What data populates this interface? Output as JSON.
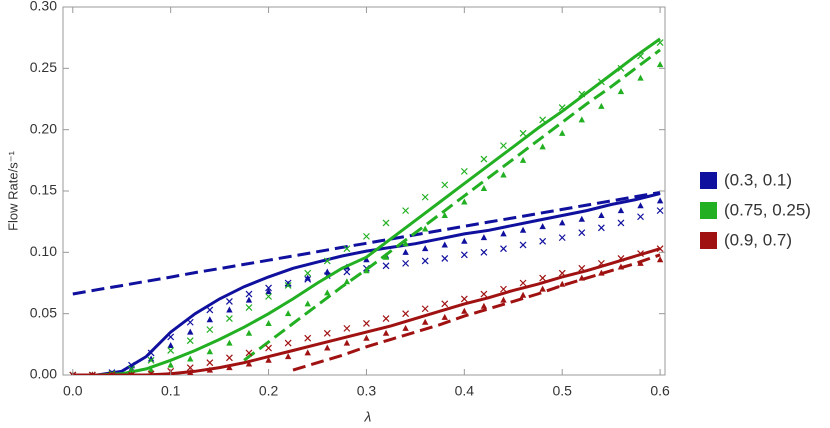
{
  "chart_data": {
    "type": "line",
    "x_label": "λ",
    "y_label": "Flow Rate/s⁻¹",
    "xlim": [
      -0.01,
      0.605
    ],
    "ylim": [
      0,
      0.3
    ],
    "xticks": [
      {
        "value": 0,
        "label": "0.0"
      },
      0.1,
      0.2,
      0.3,
      0.4,
      0.5,
      0.6
    ],
    "yticks": [
      {
        "value": 0,
        "label": "0.00"
      },
      0.05,
      {
        "value": 0.1,
        "label": "0.10"
      },
      0.15,
      {
        "value": 0.2,
        "label": "0.20"
      },
      0.25,
      {
        "value": 0.3,
        "label": "0.30"
      }
    ],
    "legend": "right",
    "line_x": [
      0,
      0.025,
      0.05,
      0.075,
      0.1,
      0.125,
      0.15,
      0.175,
      0.2,
      0.225,
      0.25,
      0.275,
      0.3,
      0.325,
      0.35,
      0.375,
      0.4,
      0.425,
      0.45,
      0.475,
      0.5,
      0.525,
      0.55,
      0.575,
      0.6
    ],
    "marker_x": [
      0,
      0.02,
      0.04,
      0.06,
      0.08,
      0.1,
      0.12,
      0.14,
      0.16,
      0.18,
      0.2,
      0.22,
      0.24,
      0.26,
      0.28,
      0.3,
      0.32,
      0.34,
      0.36,
      0.38,
      0.4,
      0.42,
      0.44,
      0.46,
      0.48,
      0.5,
      0.52,
      0.54,
      0.56,
      0.58,
      0.6
    ],
    "groups": [
      {
        "name": "(0.3, 0.1)",
        "color": "#10109e",
        "solid": [
          0,
          0,
          0.003,
          0.015,
          0.035,
          0.05,
          0.062,
          0.072,
          0.08,
          0.087,
          0.092,
          0.097,
          0.101,
          0.104,
          0.107,
          0.111,
          0.115,
          0.118,
          0.122,
          0.126,
          0.13,
          0.134,
          0.139,
          0.143,
          0.148
        ],
        "dashed": [
          0.066,
          0.0695,
          0.0729,
          0.0764,
          0.0798,
          0.0835,
          0.0867,
          0.0902,
          0.0936,
          0.097,
          0.1005,
          0.104,
          0.1074,
          0.1109,
          0.1143,
          0.1178,
          0.1212,
          0.1247,
          0.1281,
          0.1316,
          0.135,
          0.1385,
          0.1419,
          0.1454,
          0.1488
        ],
        "triangles": [
          0,
          0,
          0.001,
          0.005,
          0.013,
          0.024,
          0.035,
          0.045,
          0.053,
          0.061,
          0.068,
          0.074,
          0.079,
          0.084,
          0.088,
          0.094,
          0.097,
          0.1,
          0.103,
          0.106,
          0.109,
          0.112,
          0.115,
          0.118,
          0.121,
          0.124,
          0.127,
          0.13,
          0.134,
          0.138,
          0.142
        ],
        "crosses": [
          0,
          0,
          0.002,
          0.008,
          0.018,
          0.031,
          0.043,
          0.053,
          0.06,
          0.066,
          0.071,
          0.075,
          0.078,
          0.081,
          0.084,
          0.087,
          0.089,
          0.091,
          0.093,
          0.095,
          0.098,
          0.1,
          0.103,
          0.106,
          0.109,
          0.112,
          0.116,
          0.12,
          0.124,
          0.129,
          0.134
        ]
      },
      {
        "name": "(0.75, 0.25)",
        "color": "#22b022",
        "solid": [
          0,
          0,
          0.001,
          0.005,
          0.012,
          0.02,
          0.029,
          0.039,
          0.05,
          0.062,
          0.075,
          0.087,
          0.096,
          0.111,
          0.126,
          0.141,
          0.156,
          0.171,
          0.186,
          0.201,
          0.215,
          0.23,
          0.245,
          0.26,
          0.274
        ],
        "dashed": [
          null,
          null,
          null,
          null,
          null,
          null,
          null,
          0.012,
          0.027,
          0.042,
          0.057,
          0.072,
          0.086,
          0.101,
          0.116,
          0.131,
          0.146,
          0.161,
          0.176,
          0.191,
          0.206,
          0.221,
          0.235,
          0.25,
          0.265
        ],
        "triangles": [
          0,
          0,
          0,
          0.001,
          0.004,
          0.008,
          0.013,
          0.019,
          0.026,
          0.034,
          0.042,
          0.05,
          0.058,
          0.067,
          0.076,
          0.085,
          0.096,
          0.107,
          0.119,
          0.13,
          0.141,
          0.152,
          0.163,
          0.175,
          0.186,
          0.197,
          0.208,
          0.219,
          0.231,
          0.242,
          0.253
        ],
        "crosses": [
          0,
          0,
          0.001,
          0.005,
          0.012,
          0.02,
          0.028,
          0.037,
          0.046,
          0.055,
          0.064,
          0.073,
          0.083,
          0.093,
          0.103,
          0.113,
          0.124,
          0.134,
          0.145,
          0.155,
          0.166,
          0.176,
          0.187,
          0.197,
          0.208,
          0.218,
          0.229,
          0.239,
          0.25,
          0.26,
          0.271
        ]
      },
      {
        "name": "(0.9, 0.7)",
        "color": "#a01212",
        "solid": [
          0,
          0,
          0,
          0,
          0.001,
          0.003,
          0.006,
          0.01,
          0.015,
          0.02,
          0.025,
          0.03,
          0.035,
          0.04,
          0.046,
          0.052,
          0.058,
          0.063,
          0.069,
          0.074,
          0.08,
          0.085,
          0.091,
          0.097,
          0.103
        ],
        "dashed": [
          null,
          null,
          null,
          null,
          null,
          null,
          null,
          null,
          null,
          0.004,
          0.01,
          0.016,
          0.023,
          0.029,
          0.035,
          0.041,
          0.048,
          0.054,
          0.06,
          0.066,
          0.073,
          0.079,
          0.085,
          0.091,
          0.098
        ],
        "triangles": [
          0,
          0,
          0,
          0,
          0,
          0.001,
          0.002,
          0.004,
          0.006,
          0.009,
          0.012,
          0.015,
          0.018,
          0.022,
          0.026,
          0.03,
          0.034,
          0.038,
          0.043,
          0.047,
          0.052,
          0.056,
          0.061,
          0.065,
          0.07,
          0.074,
          0.079,
          0.083,
          0.088,
          0.091,
          0.094
        ],
        "crosses": [
          0,
          0,
          0,
          0,
          0.001,
          0.003,
          0.006,
          0.01,
          0.014,
          0.018,
          0.022,
          0.026,
          0.03,
          0.034,
          0.038,
          0.042,
          0.046,
          0.05,
          0.054,
          0.058,
          0.062,
          0.066,
          0.07,
          0.075,
          0.079,
          0.083,
          0.087,
          0.091,
          0.095,
          0.099,
          0.103
        ]
      }
    ]
  }
}
